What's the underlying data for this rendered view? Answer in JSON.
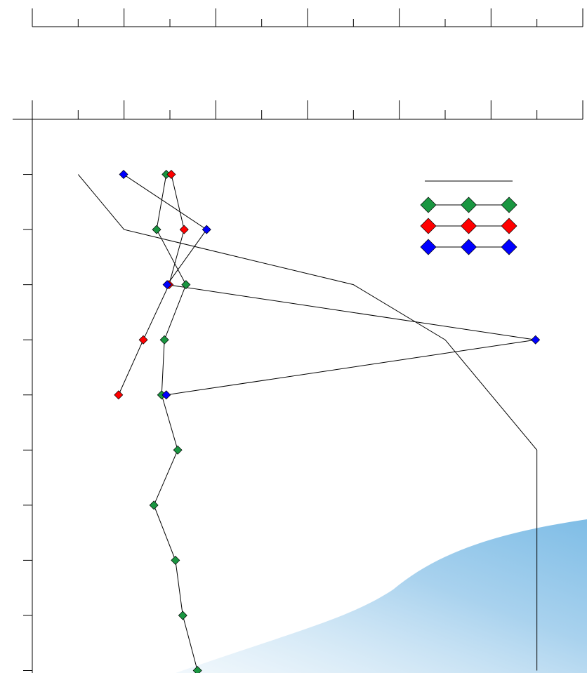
{
  "chart_data": {
    "type": "line",
    "xlim": [
      0,
      12
    ],
    "xticks": [
      0,
      1,
      2,
      3,
      4,
      5,
      6,
      7,
      8,
      9,
      10,
      11,
      12
    ],
    "ylim": [
      0,
      10
    ],
    "yticks": [
      1,
      2,
      3,
      4,
      5,
      6,
      7,
      8,
      9,
      10
    ],
    "y_inverted": true,
    "legend": "upper right",
    "series": [
      {
        "color": "#000000",
        "marker": false,
        "x": [
          1.0,
          2.0,
          7.0,
          9.0,
          11.0,
          11.0
        ],
        "y": [
          1,
          2,
          3,
          4,
          6,
          10
        ]
      },
      {
        "color": "#1a9641",
        "marker": true,
        "x": [
          2.92,
          2.71,
          3.35,
          2.88,
          2.82,
          3.17,
          2.65,
          3.12,
          3.28,
          3.6
        ],
        "y": [
          1,
          2,
          3,
          4,
          5,
          6,
          7,
          8,
          9,
          10
        ]
      },
      {
        "color": "#ff0000",
        "marker": true,
        "x": [
          3.03,
          3.31,
          2.98,
          2.42,
          1.88
        ],
        "y": [
          1,
          2,
          3,
          4,
          5
        ]
      },
      {
        "color": "#0000ff",
        "marker": true,
        "x": [
          1.99,
          3.8,
          2.94,
          10.97,
          2.92
        ],
        "y": [
          1,
          2,
          3,
          4,
          5
        ]
      }
    ]
  }
}
